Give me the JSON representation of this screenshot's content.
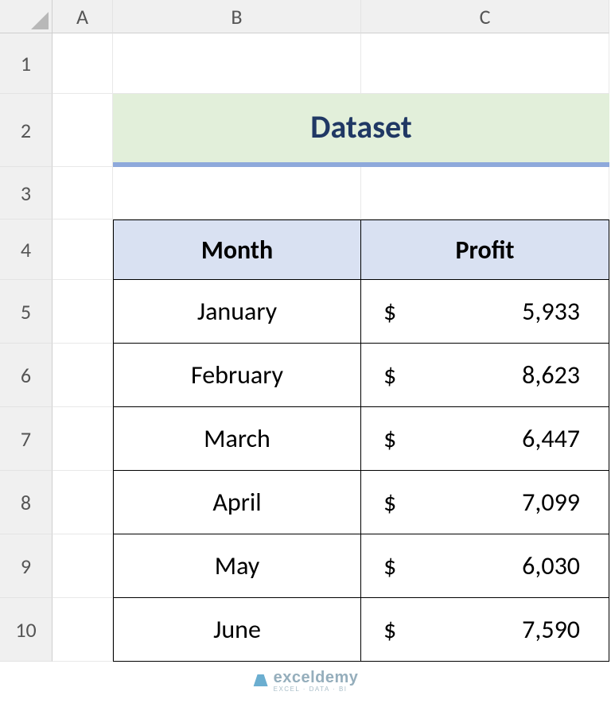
{
  "columns": {
    "A": "A",
    "B": "B",
    "C": "C"
  },
  "rows": {
    "r1": "1",
    "r2": "2",
    "r3": "3",
    "r4": "4",
    "r5": "5",
    "r6": "6",
    "r7": "7",
    "r8": "8",
    "r9": "9",
    "r10": "10"
  },
  "title": {
    "text": "Dataset",
    "background_color": "#e2efda",
    "bottom_border_color": "#8ea9db",
    "bottom_border_width": 6,
    "text_color": "#203864",
    "fontsize": 40,
    "font_weight": "bold"
  },
  "table": {
    "type": "table",
    "header_background": "#d9e1f2",
    "header_text_color": "#000000",
    "border_color": "#000000",
    "cell_background": "#ffffff",
    "currency_symbol": "$",
    "columns": [
      "Month",
      "Profit"
    ],
    "col_align": [
      "center",
      "accounting"
    ],
    "rows": [
      {
        "month": "January",
        "profit": "5,933"
      },
      {
        "month": "February",
        "profit": "8,623"
      },
      {
        "month": "March",
        "profit": "6,447"
      },
      {
        "month": "April",
        "profit": "7,099"
      },
      {
        "month": "May",
        "profit": "6,030"
      },
      {
        "month": "June",
        "profit": "7,590"
      }
    ],
    "fontsize": 32,
    "header_fontsize": 32
  },
  "watermark": {
    "brand": "exceldemy",
    "tagline": "EXCEL · DATA · BI",
    "color": "#95aebc"
  },
  "grid_style": {
    "header_bg": "#f0f0f0",
    "header_text": "#555555",
    "gridline_color": "#e8e8e8"
  }
}
